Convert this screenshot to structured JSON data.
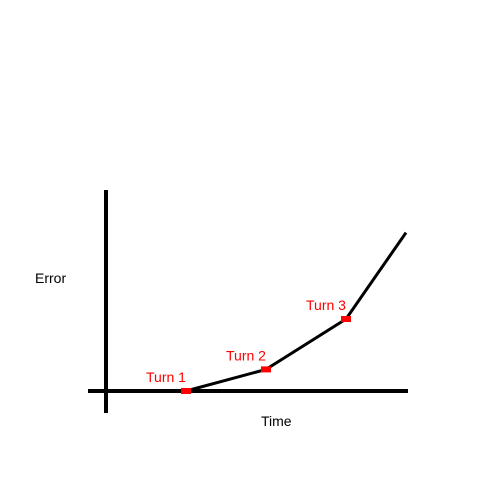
{
  "chart_data": {
    "type": "line",
    "title": "",
    "xlabel": "Time",
    "ylabel": "Error",
    "grid": false,
    "xlim": [
      0,
      9
    ],
    "ylim": [
      0,
      6
    ],
    "series": [
      {
        "x": [
          2,
          4,
          6,
          7.5
        ],
        "y": [
          0,
          0.45,
          1.5,
          3.3
        ]
      }
    ],
    "annotations": [
      {
        "text": "Turn 1",
        "x": 2,
        "y": 0
      },
      {
        "text": "Turn 2",
        "x": 4,
        "y": 0.45
      },
      {
        "text": "Turn 3",
        "x": 6,
        "y": 1.5
      }
    ],
    "colors": {
      "line": "#000000",
      "axes": "#000000",
      "marker": "#ff0000",
      "annotation_text": "#ff0000"
    }
  }
}
